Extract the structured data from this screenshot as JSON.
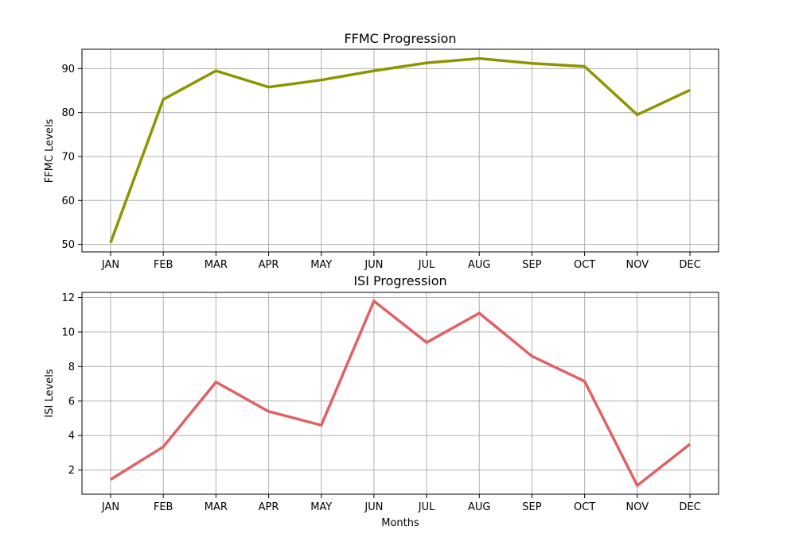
{
  "chart_data": [
    {
      "type": "line",
      "title": "FFMC Progression",
      "xlabel": "",
      "ylabel": "FFMC Levels",
      "categories": [
        "JAN",
        "FEB",
        "MAR",
        "APR",
        "MAY",
        "JUN",
        "JUL",
        "AUG",
        "SEP",
        "OCT",
        "NOV",
        "DEC"
      ],
      "series": [
        {
          "values": [
            50.4,
            83.0,
            89.5,
            85.8,
            87.4,
            89.5,
            91.3,
            92.3,
            91.2,
            90.5,
            79.5,
            85.1
          ],
          "color": "#8c9600"
        }
      ],
      "yticks": [
        50,
        60,
        70,
        80,
        90
      ],
      "ylim": [
        48.3,
        94.4
      ],
      "grid": true
    },
    {
      "type": "line",
      "title": "ISI Progression",
      "xlabel": "Months",
      "ylabel": "ISI Levels",
      "categories": [
        "JAN",
        "FEB",
        "MAR",
        "APR",
        "MAY",
        "JUN",
        "JUL",
        "AUG",
        "SEP",
        "OCT",
        "NOV",
        "DEC"
      ],
      "series": [
        {
          "values": [
            1.45,
            3.35,
            7.1,
            5.4,
            4.6,
            11.8,
            9.4,
            11.1,
            8.6,
            7.15,
            1.1,
            3.5
          ],
          "color": "#e06166"
        }
      ],
      "yticks": [
        2,
        4,
        6,
        8,
        10,
        12
      ],
      "ylim": [
        0.6,
        12.3
      ],
      "grid": true
    }
  ]
}
